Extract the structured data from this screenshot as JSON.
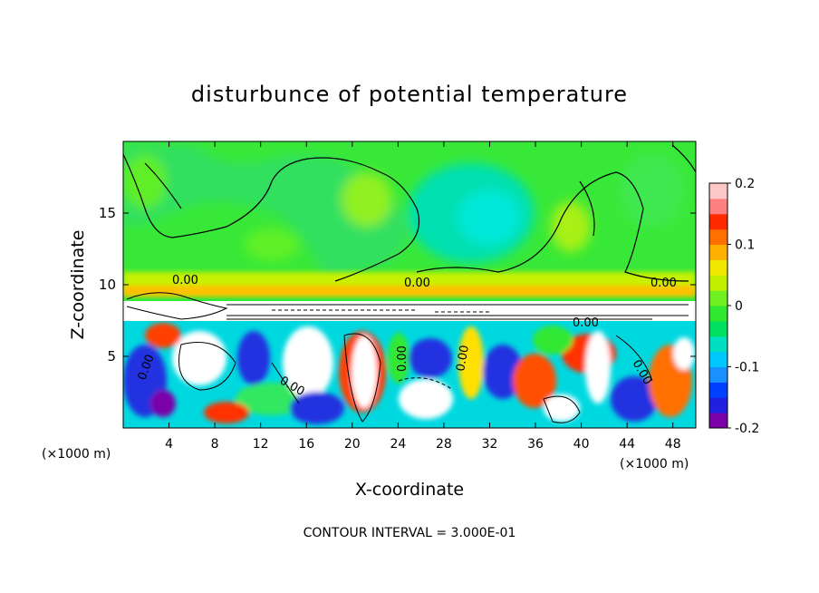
{
  "chart_data": {
    "type": "heatmap",
    "title": "disturbunce of potential temperature",
    "xlabel": "X-coordinate",
    "ylabel": "Z-coordinate",
    "x_unit_left": "(×1000 m)",
    "x_unit_right": "(×1000 m)",
    "xlim": [
      0,
      50
    ],
    "ylim": [
      0,
      20
    ],
    "xticks": [
      4,
      8,
      12,
      16,
      20,
      24,
      28,
      32,
      36,
      40,
      44,
      48
    ],
    "yticks": [
      5,
      10,
      15
    ],
    "colorbar": {
      "range": [
        -0.2,
        0.2
      ],
      "ticks": [
        "0.2",
        "0.1",
        "0",
        "-0.1",
        "-0.2"
      ],
      "tick_values": [
        0.2,
        0.1,
        0,
        -0.1,
        -0.2
      ],
      "colors": [
        "#7b00a8",
        "#2020e0",
        "#0040ff",
        "#1a90ff",
        "#00c8ff",
        "#00e0c0",
        "#00e060",
        "#30e830",
        "#70f020",
        "#c0f000",
        "#f0e800",
        "#ffb000",
        "#ff7000",
        "#ff2a00",
        "#ff8080",
        "#ffc8c8"
      ]
    },
    "contour_labels": [
      "0.00",
      "0.00",
      "0.00",
      "0.00",
      "0.00",
      "0.00",
      "0.00",
      "0.00",
      "0.00"
    ],
    "footer": "CONTOUR INTERVAL = 3.000E-01"
  }
}
